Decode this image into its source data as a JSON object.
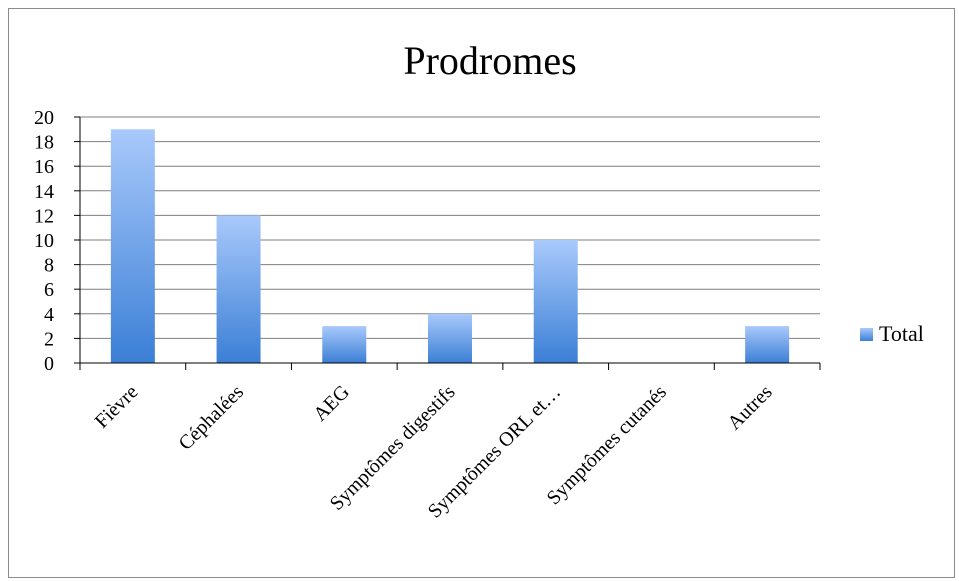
{
  "chart_data": {
    "type": "bar",
    "title": "Prodromes",
    "categories": [
      "Fièvre",
      "Céphalées",
      "AEG",
      "Symptômes digestifs",
      "Symptômes ORL et…",
      "Symptômes cutanés",
      "Autres"
    ],
    "series": [
      {
        "name": "Total",
        "values": [
          19,
          12,
          3,
          4,
          10,
          0,
          3
        ]
      }
    ],
    "ylim": [
      0,
      20
    ],
    "yticks": [
      0,
      2,
      4,
      6,
      8,
      10,
      12,
      14,
      16,
      18,
      20
    ],
    "grid": true,
    "legend_position": "right",
    "colors": {
      "bar_top": "#a9c9fb",
      "bar_bottom": "#3b7fd6",
      "gridline": "#7f7f7f",
      "frame": "#8c8c8c"
    }
  }
}
